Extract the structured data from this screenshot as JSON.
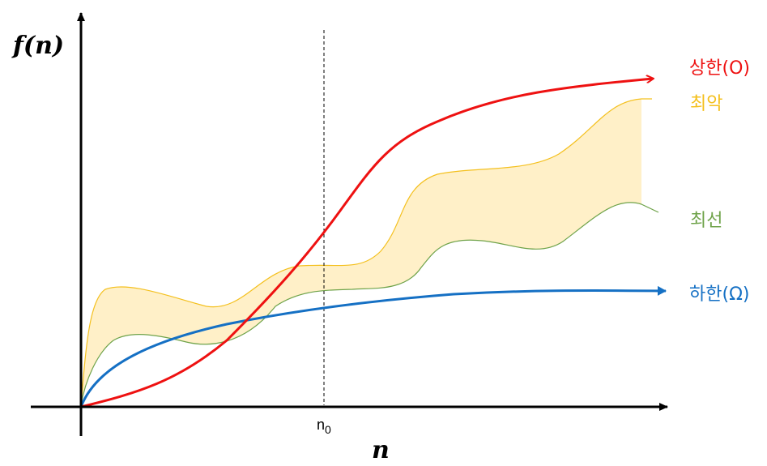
{
  "axes": {
    "y_title": "f(n)",
    "x_title": "n",
    "threshold_label_base": "n",
    "threshold_label_subscript": "0"
  },
  "labels": {
    "upper_bound": "상한(O)",
    "worst_case": "최악",
    "best_case": "최선",
    "lower_bound": "하한(Ω)"
  },
  "colors": {
    "upper_bound": "#ee1111",
    "worst_case": "#f4c01e",
    "best_case": "#6fa34a",
    "lower_bound": "#1570c4",
    "band_fill": "#fff0c8",
    "axis": "#000000"
  }
}
